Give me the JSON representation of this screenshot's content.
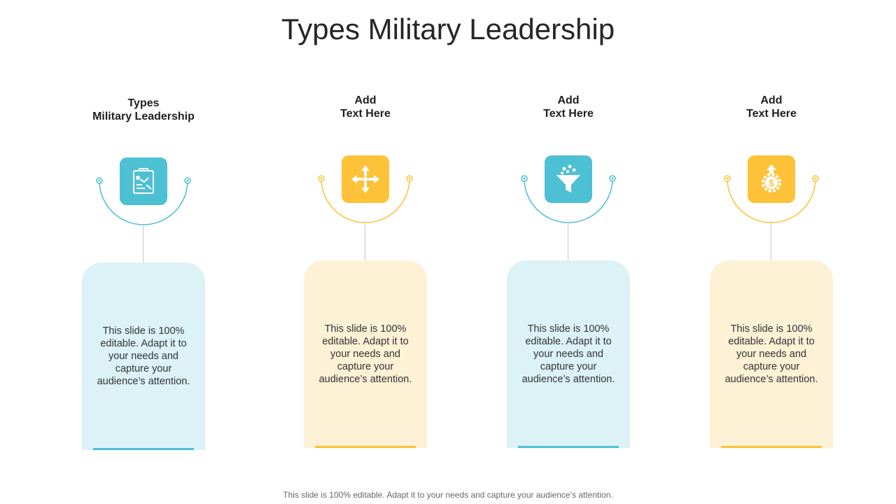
{
  "title": "Types Military Leadership",
  "colors": {
    "blue": "#4dc0d4",
    "blue_light": "#dcf2f7",
    "yellow": "#fdc237",
    "yellow_light": "#fdf1d6"
  },
  "cards": [
    {
      "heading": "Types\nMilitary Leadership",
      "icon": "strategy-board-icon",
      "theme": "blue",
      "body": "This slide is 100% editable. Adapt it to your needs and capture your audience’s attention."
    },
    {
      "heading": "Add\nText Here",
      "icon": "four-arrows-move-icon",
      "theme": "yellow",
      "body": "This slide is 100% editable. Adapt it to your needs and capture your audience’s attention."
    },
    {
      "heading": "Add\nText Here",
      "icon": "funnel-icon",
      "theme": "blue",
      "body": "This slide is 100% editable. Adapt it to your needs and capture your audience’s attention."
    },
    {
      "heading": "Add\nText Here",
      "icon": "dollar-gear-growth-icon",
      "theme": "yellow",
      "body": "This slide is 100% editable. Adapt it to your needs and capture your audience’s attention."
    }
  ],
  "footer": "This slide is 100% editable. Adapt it to your needs and capture your audience’s attention."
}
